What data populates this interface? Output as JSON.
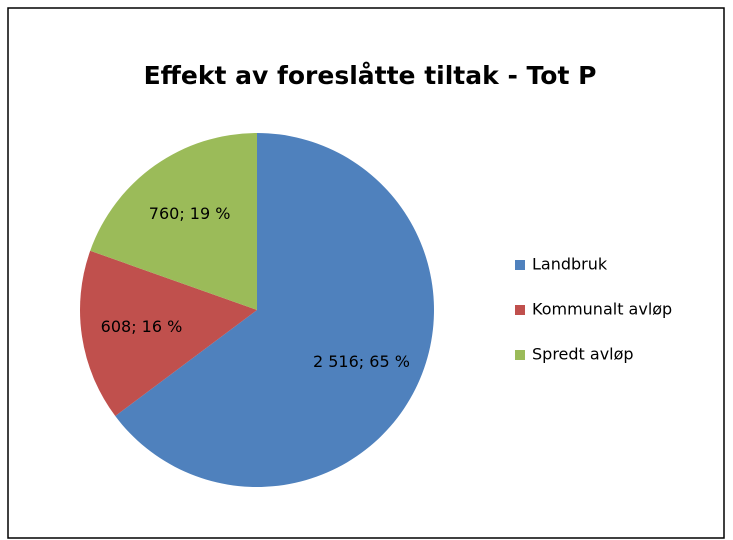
{
  "chart_data": {
    "type": "pie",
    "title": "Effekt av foreslåtte tiltak - Tot P",
    "categories": [
      "Landbruk",
      "Kommunalt avløp",
      "Spredt avløp"
    ],
    "values": [
      2516,
      608,
      760
    ],
    "value_labels": [
      "2 516; 65 %",
      "608; 16 %",
      "760; 19 %"
    ],
    "colors": [
      "#4f81bd",
      "#c0504d",
      "#9bbb59"
    ],
    "legend": "right"
  }
}
